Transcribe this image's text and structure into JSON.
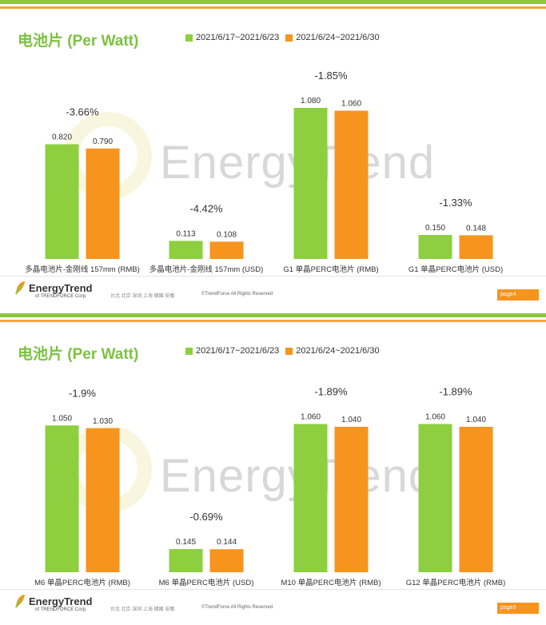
{
  "slides": [
    {
      "title": "电池片 (Per Watt)",
      "legend": [
        "2021/6/17~2021/6/23",
        "2021/6/24~2021/6/30"
      ],
      "footer": {
        "logo": "EnergyTrend",
        "logo_sub": "of TRENDFORCE Corp.",
        "cities": "台北 北京 深圳 上海 韓國 安徽",
        "copyright": "©TrendForce All Rights Reserved",
        "page": "page4"
      },
      "watermark": "EnergyTrend"
    },
    {
      "title": "电池片 (Per Watt)",
      "legend": [
        "2021/6/17~2021/6/23",
        "2021/6/24~2021/6/30"
      ],
      "footer": {
        "logo": "EnergyTrend",
        "logo_sub": "of TRENDFORCE Corp.",
        "cities": "台北 北京 深圳 上海 韓國 安徽",
        "copyright": "©TrendForce All Rights Reserved",
        "page": "page5"
      },
      "watermark": "EnergyTrend"
    }
  ],
  "colors": {
    "green": "#8dcf3f",
    "orange": "#f7941d",
    "title": "#7cc242"
  },
  "chart_data": [
    {
      "type": "bar",
      "categories": [
        "多晶电池片-金刚线 157mm (RMB)",
        "多晶电池片-金刚线 157mm (USD)",
        "G1 单晶PERC电池片 (RMB)",
        "G1 单晶PERC电池片 (USD)"
      ],
      "series": [
        {
          "name": "2021/6/17~2021/6/23",
          "values": [
            0.82,
            0.113,
            1.08,
            0.15
          ],
          "labels": [
            "0.820",
            "0.113",
            "1.080",
            "0.150"
          ]
        },
        {
          "name": "2021/6/24~2021/6/30",
          "values": [
            0.79,
            0.108,
            1.06,
            0.148
          ],
          "labels": [
            "0.790",
            "0.108",
            "1.060",
            "0.148"
          ]
        }
      ],
      "annotations": [
        "-3.66%",
        "-4.42%",
        "-1.85%",
        "-1.33%"
      ],
      "groups_scale": [
        "rmb",
        "usd",
        "rmb",
        "usd"
      ]
    },
    {
      "type": "bar",
      "categories": [
        "M6 单晶PERC电池片 (RMB)",
        "M6 单晶PERC电池片 (USD)",
        "M10 单晶PERC电池片 (RMB)",
        "G12 单晶PERC电池片 (RMB)"
      ],
      "series": [
        {
          "name": "2021/6/17~2021/6/23",
          "values": [
            1.05,
            0.145,
            1.06,
            1.06
          ],
          "labels": [
            "1.050",
            "0.145",
            "1.060",
            "1.060"
          ]
        },
        {
          "name": "2021/6/24~2021/6/30",
          "values": [
            1.03,
            0.144,
            1.04,
            1.04
          ],
          "labels": [
            "1.030",
            "0.144",
            "1.040",
            "1.040"
          ]
        }
      ],
      "annotations": [
        "-1.9%",
        "-0.69%",
        "-1.89%",
        "-1.89%"
      ],
      "groups_scale": [
        "rmb",
        "usd",
        "rmb",
        "rmb"
      ]
    }
  ]
}
